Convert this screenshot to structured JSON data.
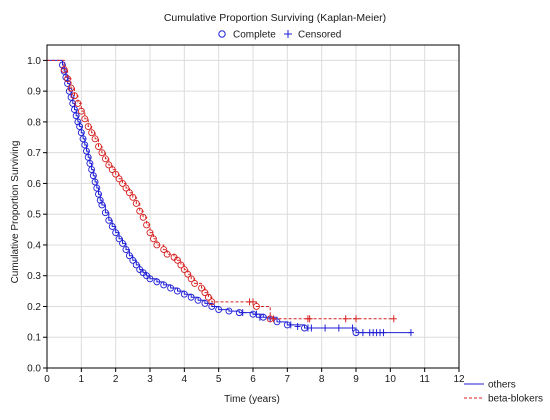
{
  "chart_data": {
    "type": "line",
    "title": "Cumulative Proportion Surviving (Kaplan-Meier)",
    "xlabel": "Time (years)",
    "ylabel": "Cumulative Proportion Surviving",
    "xlim": [
      0,
      12
    ],
    "ylim": [
      0,
      1.05
    ],
    "x_ticks": [
      "0",
      "1",
      "2",
      "3",
      "4",
      "5",
      "6",
      "7",
      "8",
      "9",
      "10",
      "11",
      "12"
    ],
    "y_ticks": [
      "0.0",
      "0.1",
      "0.2",
      "0.3",
      "0.4",
      "0.5",
      "0.6",
      "0.7",
      "0.8",
      "0.9",
      "1.0"
    ],
    "grid": true,
    "marker_legend": {
      "complete_label": "Complete",
      "censored_label": "Censored",
      "position": "top"
    },
    "line_legend_position": "bottom-right",
    "series": [
      {
        "name": "others",
        "color": "#1f1fd6",
        "line_style": "solid",
        "points": [
          [
            0,
            1.0
          ],
          [
            0.4,
            1.0
          ],
          [
            0.45,
            0.985
          ],
          [
            0.5,
            0.965
          ],
          [
            0.55,
            0.945
          ],
          [
            0.6,
            0.925
          ],
          [
            0.65,
            0.9
          ],
          [
            0.7,
            0.88
          ],
          [
            0.75,
            0.86
          ],
          [
            0.8,
            0.84
          ],
          [
            0.85,
            0.82
          ],
          [
            0.9,
            0.8
          ],
          [
            0.95,
            0.785
          ],
          [
            1.0,
            0.765
          ],
          [
            1.05,
            0.745
          ],
          [
            1.1,
            0.725
          ],
          [
            1.15,
            0.705
          ],
          [
            1.2,
            0.685
          ],
          [
            1.25,
            0.665
          ],
          [
            1.3,
            0.645
          ],
          [
            1.35,
            0.625
          ],
          [
            1.4,
            0.605
          ],
          [
            1.45,
            0.585
          ],
          [
            1.5,
            0.565
          ],
          [
            1.55,
            0.545
          ],
          [
            1.6,
            0.53
          ],
          [
            1.7,
            0.505
          ],
          [
            1.8,
            0.48
          ],
          [
            1.9,
            0.46
          ],
          [
            2.0,
            0.44
          ],
          [
            2.1,
            0.42
          ],
          [
            2.2,
            0.405
          ],
          [
            2.3,
            0.385
          ],
          [
            2.4,
            0.365
          ],
          [
            2.5,
            0.35
          ],
          [
            2.6,
            0.335
          ],
          [
            2.7,
            0.32
          ],
          [
            2.8,
            0.31
          ],
          [
            2.9,
            0.3
          ],
          [
            3.0,
            0.29
          ],
          [
            3.2,
            0.28
          ],
          [
            3.4,
            0.27
          ],
          [
            3.6,
            0.26
          ],
          [
            3.8,
            0.25
          ],
          [
            4.0,
            0.24
          ],
          [
            4.2,
            0.23
          ],
          [
            4.4,
            0.22
          ],
          [
            4.6,
            0.21
          ],
          [
            4.8,
            0.2
          ],
          [
            5.0,
            0.19
          ],
          [
            5.3,
            0.185
          ],
          [
            5.6,
            0.18
          ],
          [
            6.0,
            0.175
          ],
          [
            6.3,
            0.165
          ],
          [
            6.7,
            0.15
          ],
          [
            7.0,
            0.14
          ],
          [
            7.5,
            0.13
          ],
          [
            9.0,
            0.115
          ],
          [
            10.6,
            0.115
          ]
        ],
        "complete_events": [
          [
            0.45,
            0.985
          ],
          [
            0.5,
            0.965
          ],
          [
            0.55,
            0.945
          ],
          [
            0.6,
            0.925
          ],
          [
            0.65,
            0.9
          ],
          [
            0.7,
            0.88
          ],
          [
            0.75,
            0.86
          ],
          [
            0.8,
            0.84
          ],
          [
            0.85,
            0.82
          ],
          [
            0.9,
            0.8
          ],
          [
            0.95,
            0.785
          ],
          [
            1.0,
            0.765
          ],
          [
            1.05,
            0.745
          ],
          [
            1.1,
            0.725
          ],
          [
            1.15,
            0.705
          ],
          [
            1.2,
            0.685
          ],
          [
            1.25,
            0.665
          ],
          [
            1.3,
            0.645
          ],
          [
            1.35,
            0.625
          ],
          [
            1.4,
            0.605
          ],
          [
            1.45,
            0.585
          ],
          [
            1.5,
            0.565
          ],
          [
            1.55,
            0.545
          ],
          [
            1.6,
            0.53
          ],
          [
            1.7,
            0.505
          ],
          [
            1.8,
            0.48
          ],
          [
            1.9,
            0.46
          ],
          [
            2.0,
            0.44
          ],
          [
            2.1,
            0.42
          ],
          [
            2.2,
            0.405
          ],
          [
            2.3,
            0.385
          ],
          [
            2.4,
            0.365
          ],
          [
            2.5,
            0.35
          ],
          [
            2.6,
            0.335
          ],
          [
            2.7,
            0.32
          ],
          [
            2.8,
            0.31
          ],
          [
            2.9,
            0.3
          ],
          [
            3.0,
            0.29
          ],
          [
            3.2,
            0.28
          ],
          [
            3.4,
            0.27
          ],
          [
            3.6,
            0.26
          ],
          [
            3.8,
            0.25
          ],
          [
            4.0,
            0.24
          ],
          [
            4.2,
            0.23
          ],
          [
            4.4,
            0.22
          ],
          [
            4.6,
            0.21
          ],
          [
            4.8,
            0.2
          ],
          [
            5.0,
            0.19
          ],
          [
            5.3,
            0.185
          ],
          [
            5.6,
            0.18
          ],
          [
            6.0,
            0.175
          ],
          [
            6.3,
            0.165
          ],
          [
            6.7,
            0.15
          ],
          [
            7.0,
            0.14
          ],
          [
            7.5,
            0.13
          ],
          [
            9.0,
            0.115
          ]
        ],
        "censored_events": [
          [
            5.7,
            0.18
          ],
          [
            6.1,
            0.175
          ],
          [
            6.2,
            0.165
          ],
          [
            6.5,
            0.16
          ],
          [
            7.1,
            0.14
          ],
          [
            7.3,
            0.135
          ],
          [
            7.6,
            0.13
          ],
          [
            7.7,
            0.13
          ],
          [
            8.1,
            0.13
          ],
          [
            8.5,
            0.13
          ],
          [
            8.9,
            0.13
          ],
          [
            9.2,
            0.115
          ],
          [
            9.4,
            0.115
          ],
          [
            9.5,
            0.115
          ],
          [
            9.6,
            0.115
          ],
          [
            9.7,
            0.115
          ],
          [
            9.8,
            0.115
          ],
          [
            10.6,
            0.115
          ]
        ]
      },
      {
        "name": "beta-blokers",
        "color": "#d62020",
        "line_style": "dashed",
        "points": [
          [
            0,
            1.0
          ],
          [
            0.4,
            1.0
          ],
          [
            0.5,
            0.97
          ],
          [
            0.6,
            0.94
          ],
          [
            0.7,
            0.91
          ],
          [
            0.8,
            0.885
          ],
          [
            0.9,
            0.86
          ],
          [
            1.0,
            0.835
          ],
          [
            1.1,
            0.81
          ],
          [
            1.2,
            0.785
          ],
          [
            1.3,
            0.765
          ],
          [
            1.4,
            0.745
          ],
          [
            1.5,
            0.72
          ],
          [
            1.6,
            0.7
          ],
          [
            1.7,
            0.68
          ],
          [
            1.8,
            0.66
          ],
          [
            1.9,
            0.645
          ],
          [
            2.0,
            0.63
          ],
          [
            2.1,
            0.615
          ],
          [
            2.2,
            0.6
          ],
          [
            2.3,
            0.585
          ],
          [
            2.4,
            0.57
          ],
          [
            2.5,
            0.555
          ],
          [
            2.6,
            0.535
          ],
          [
            2.7,
            0.51
          ],
          [
            2.8,
            0.49
          ],
          [
            2.9,
            0.465
          ],
          [
            3.0,
            0.44
          ],
          [
            3.1,
            0.42
          ],
          [
            3.2,
            0.4
          ],
          [
            3.4,
            0.385
          ],
          [
            3.5,
            0.37
          ],
          [
            3.7,
            0.36
          ],
          [
            3.8,
            0.35
          ],
          [
            3.9,
            0.335
          ],
          [
            4.0,
            0.32
          ],
          [
            4.1,
            0.305
          ],
          [
            4.2,
            0.29
          ],
          [
            4.3,
            0.275
          ],
          [
            4.5,
            0.26
          ],
          [
            4.6,
            0.245
          ],
          [
            4.7,
            0.23
          ],
          [
            4.8,
            0.215
          ],
          [
            5.0,
            0.215
          ],
          [
            6.1,
            0.2
          ],
          [
            6.5,
            0.16
          ],
          [
            10.1,
            0.16
          ]
        ],
        "complete_events": [
          [
            0.5,
            0.97
          ],
          [
            0.6,
            0.94
          ],
          [
            0.7,
            0.91
          ],
          [
            0.8,
            0.885
          ],
          [
            0.9,
            0.86
          ],
          [
            1.0,
            0.835
          ],
          [
            1.1,
            0.81
          ],
          [
            1.2,
            0.785
          ],
          [
            1.3,
            0.765
          ],
          [
            1.4,
            0.745
          ],
          [
            1.5,
            0.72
          ],
          [
            1.6,
            0.7
          ],
          [
            1.7,
            0.68
          ],
          [
            1.8,
            0.66
          ],
          [
            1.9,
            0.645
          ],
          [
            2.0,
            0.63
          ],
          [
            2.1,
            0.615
          ],
          [
            2.2,
            0.6
          ],
          [
            2.3,
            0.585
          ],
          [
            2.4,
            0.57
          ],
          [
            2.5,
            0.555
          ],
          [
            2.6,
            0.535
          ],
          [
            2.7,
            0.51
          ],
          [
            2.8,
            0.49
          ],
          [
            2.9,
            0.465
          ],
          [
            3.0,
            0.44
          ],
          [
            3.1,
            0.42
          ],
          [
            3.2,
            0.4
          ],
          [
            3.4,
            0.385
          ],
          [
            3.5,
            0.37
          ],
          [
            3.7,
            0.36
          ],
          [
            3.8,
            0.35
          ],
          [
            3.9,
            0.335
          ],
          [
            4.0,
            0.32
          ],
          [
            4.1,
            0.305
          ],
          [
            4.2,
            0.29
          ],
          [
            4.3,
            0.275
          ],
          [
            4.5,
            0.26
          ],
          [
            4.6,
            0.245
          ],
          [
            4.7,
            0.23
          ],
          [
            4.8,
            0.215
          ],
          [
            6.1,
            0.2
          ],
          [
            6.5,
            0.16
          ]
        ],
        "censored_events": [
          [
            5.9,
            0.215
          ],
          [
            6.0,
            0.215
          ],
          [
            6.6,
            0.16
          ],
          [
            7.6,
            0.16
          ],
          [
            7.65,
            0.16
          ],
          [
            8.7,
            0.16
          ],
          [
            9.0,
            0.16
          ],
          [
            10.1,
            0.16
          ]
        ]
      }
    ]
  }
}
